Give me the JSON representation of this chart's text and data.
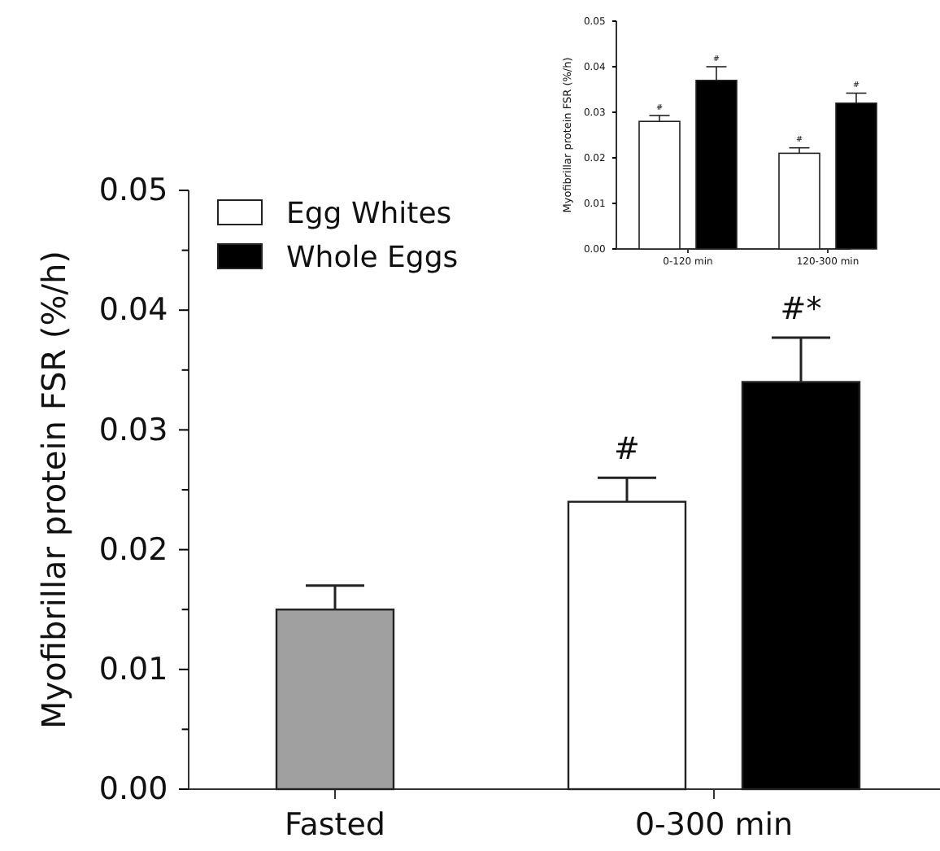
{
  "chart_data": [
    {
      "type": "bar",
      "categories": [
        "Fasted",
        "0-300 min"
      ],
      "ylabel": "Myofibrillar protein FSR (%/h)",
      "ylim": [
        0,
        0.05
      ],
      "yticks": [
        {
          "value": 0,
          "label": "0.00"
        },
        {
          "value": 0.005,
          "label": null
        },
        {
          "value": 0.01,
          "label": "0.01"
        },
        {
          "value": 0.015,
          "label": null
        },
        {
          "value": 0.02,
          "label": "0.02"
        },
        {
          "value": 0.025,
          "label": null
        },
        {
          "value": 0.03,
          "label": "0.03"
        },
        {
          "value": 0.035,
          "label": null
        },
        {
          "value": 0.04,
          "label": "0.04"
        },
        {
          "value": 0.045,
          "label": null
        },
        {
          "value": 0.05,
          "label": "0.05"
        }
      ],
      "series": [
        {
          "color": "#a0a0a0",
          "values": [
            0.015,
            null
          ],
          "errors": [
            0.002,
            null
          ]
        },
        {
          "name": "Egg Whites",
          "color": "#ffffff",
          "values": [
            null,
            0.024
          ],
          "errors": [
            null,
            0.002
          ],
          "value_labels": [
            null,
            "#"
          ]
        },
        {
          "name": "Whole Eggs",
          "color": "#000000",
          "values": [
            null,
            0.034
          ],
          "errors": [
            null,
            0.0037
          ],
          "value_labels": [
            null,
            "#*"
          ]
        }
      ],
      "legend": "top left"
    },
    {
      "type": "bar",
      "categories": [
        "0-120 min",
        "120-300 min"
      ],
      "ylabel": "Myofibrillar protein FSR (%/h)",
      "ylim": [
        0,
        0.05
      ],
      "yticks": [
        {
          "value": 0,
          "label": "0.00"
        },
        {
          "value": 0.01,
          "label": "0.01"
        },
        {
          "value": 0.02,
          "label": "0.02"
        },
        {
          "value": 0.03,
          "label": "0.03"
        },
        {
          "value": 0.04,
          "label": "0.04"
        },
        {
          "value": 0.05,
          "label": "0.05"
        }
      ],
      "series": [
        {
          "color": "#ffffff",
          "values": [
            0.028,
            0.021
          ],
          "errors": [
            0.0013,
            0.0012
          ],
          "value_labels": [
            "#",
            "#"
          ]
        },
        {
          "color": "#000000",
          "values": [
            0.037,
            0.032
          ],
          "errors": [
            0.003,
            0.0022
          ],
          "value_labels": [
            "#",
            "#"
          ]
        }
      ]
    }
  ]
}
